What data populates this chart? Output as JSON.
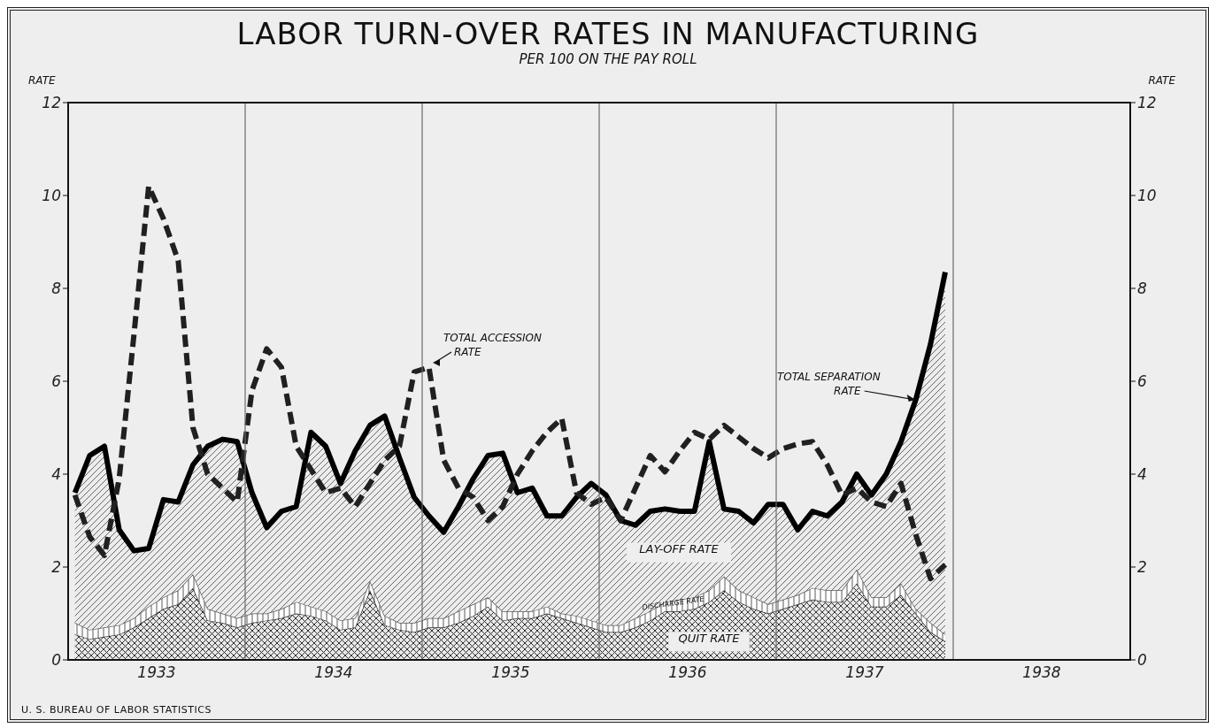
{
  "chart_data": {
    "type": "area",
    "title": "LABOR TURN-OVER RATES IN MANUFACTURING",
    "subtitle": "PER 100 ON THE PAY ROLL",
    "ylabel": "RATE",
    "y2label": "RATE",
    "x": [
      "1933-01-15",
      "1933-02-15",
      "1933-03-15",
      "1933-04-15",
      "1933-05-15",
      "1933-06-15",
      "1933-07-15",
      "1933-08-15",
      "1933-09-15",
      "1933-10-15",
      "1933-11-15",
      "1933-12-15",
      "1934-01-15",
      "1934-02-15",
      "1934-03-15",
      "1934-04-15",
      "1934-05-15",
      "1934-06-15",
      "1934-07-15",
      "1934-08-15",
      "1934-09-15",
      "1934-10-15",
      "1934-11-15",
      "1934-12-15",
      "1935-01-15",
      "1935-02-15",
      "1935-03-15",
      "1935-04-15",
      "1935-05-15",
      "1935-06-15",
      "1935-07-15",
      "1935-08-15",
      "1935-09-15",
      "1935-10-15",
      "1935-11-15",
      "1935-12-15",
      "1936-01-15",
      "1936-02-15",
      "1936-03-15",
      "1936-04-15",
      "1936-05-15",
      "1936-06-15",
      "1936-07-15",
      "1936-08-15",
      "1936-09-15",
      "1936-10-15",
      "1936-11-15",
      "1936-12-15",
      "1937-01-15",
      "1937-02-15",
      "1937-03-15",
      "1937-04-15",
      "1937-05-15",
      "1937-06-15",
      "1937-07-15",
      "1937-08-15",
      "1937-09-15",
      "1937-10-15",
      "1937-11-15",
      "1937-12-15"
    ],
    "stacked": true,
    "series": [
      {
        "name": "QUIT RATE",
        "color": "#303030",
        "values": [
          0.55,
          0.45,
          0.5,
          0.55,
          0.7,
          0.9,
          1.1,
          1.2,
          1.55,
          0.85,
          0.8,
          0.7,
          0.8,
          0.85,
          0.9,
          1.0,
          0.95,
          0.85,
          0.65,
          0.7,
          1.5,
          0.75,
          0.65,
          0.6,
          0.7,
          0.7,
          0.8,
          0.95,
          1.15,
          0.85,
          0.9,
          0.9,
          1.0,
          0.9,
          0.8,
          0.7,
          0.6,
          0.6,
          0.7,
          0.85,
          1.05,
          1.05,
          1.1,
          1.25,
          1.5,
          1.25,
          1.1,
          1.0,
          1.1,
          1.2,
          1.3,
          1.25,
          1.25,
          1.65,
          1.15,
          1.15,
          1.4,
          1.0,
          0.6,
          0.4
        ]
      },
      {
        "name": "DISCHARGE RATE",
        "color": "#5a5a5a",
        "values": [
          0.25,
          0.2,
          0.2,
          0.2,
          0.2,
          0.25,
          0.25,
          0.3,
          0.3,
          0.25,
          0.2,
          0.2,
          0.2,
          0.15,
          0.2,
          0.25,
          0.2,
          0.2,
          0.2,
          0.2,
          0.2,
          0.2,
          0.15,
          0.2,
          0.2,
          0.2,
          0.25,
          0.25,
          0.2,
          0.2,
          0.15,
          0.15,
          0.15,
          0.1,
          0.15,
          0.15,
          0.15,
          0.15,
          0.2,
          0.2,
          0.2,
          0.25,
          0.25,
          0.25,
          0.3,
          0.25,
          0.25,
          0.2,
          0.2,
          0.2,
          0.25,
          0.25,
          0.25,
          0.3,
          0.2,
          0.2,
          0.25,
          0.1,
          0.2,
          0.15
        ]
      },
      {
        "name": "LAY-OFF RATE",
        "color": "#484848",
        "values": [
          2.8,
          3.75,
          3.9,
          2.05,
          1.45,
          1.25,
          2.1,
          1.9,
          2.35,
          3.5,
          3.75,
          3.8,
          2.6,
          1.85,
          2.1,
          2.05,
          3.75,
          3.55,
          2.95,
          3.6,
          3.35,
          4.3,
          3.55,
          2.7,
          2.2,
          1.85,
          2.25,
          2.7,
          3.05,
          3.4,
          2.55,
          2.65,
          1.95,
          2.1,
          2.55,
          2.95,
          2.8,
          2.25,
          2.0,
          2.15,
          2.0,
          1.9,
          1.85,
          3.2,
          1.45,
          1.7,
          1.6,
          2.15,
          2.05,
          1.4,
          1.65,
          1.6,
          1.9,
          2.05,
          2.2,
          2.65,
          3.05,
          4.5,
          6.0,
          7.8
        ]
      },
      {
        "name": "TOTAL ACCESSION RATE",
        "type": "line",
        "line_style": "dashed",
        "color": "#202020",
        "values": [
          3.55,
          2.65,
          2.25,
          3.9,
          7.0,
          10.2,
          9.5,
          8.6,
          5.0,
          4.0,
          3.7,
          3.4,
          5.8,
          6.7,
          6.3,
          4.6,
          4.1,
          3.6,
          3.7,
          3.3,
          3.8,
          4.3,
          4.6,
          6.2,
          6.3,
          4.3,
          3.7,
          3.5,
          3.0,
          3.3,
          4.0,
          4.5,
          4.9,
          5.2,
          3.6,
          3.35,
          3.5,
          3.0,
          3.7,
          4.4,
          4.05,
          4.5,
          4.9,
          4.75,
          5.05,
          4.8,
          4.55,
          4.35,
          4.55,
          4.65,
          4.7,
          4.2,
          3.55,
          3.7,
          3.4,
          3.3,
          3.8,
          2.7,
          1.75,
          2.05
        ]
      }
    ],
    "xlim": [
      "1933-01-01",
      "1939-01-01"
    ],
    "xticks": [
      {
        "value": "1933-07-01",
        "label": "1933"
      },
      {
        "value": "1934-07-01",
        "label": "1934"
      },
      {
        "value": "1935-07-01",
        "label": "1935"
      },
      {
        "value": "1936-07-01",
        "label": "1936"
      },
      {
        "value": "1937-07-01",
        "label": "1937"
      },
      {
        "value": "1938-07-01",
        "label": "1938"
      }
    ],
    "ylim": [
      0,
      12
    ],
    "yticks": [
      0,
      2,
      4,
      6,
      8,
      10,
      12
    ],
    "y2lim": [
      0,
      12
    ],
    "y2ticks": [
      0,
      2,
      4,
      6,
      8,
      10,
      12
    ],
    "ref_lines": [
      {
        "axis": "x",
        "value": "1934-01-01",
        "color": "#6b6b6b"
      },
      {
        "axis": "x",
        "value": "1935-01-01",
        "color": "#6b6b6b"
      },
      {
        "axis": "x",
        "value": "1936-01-01",
        "color": "#6b6b6b"
      },
      {
        "axis": "x",
        "value": "1937-01-01",
        "color": "#6b6b6b"
      },
      {
        "axis": "x",
        "value": "1938-01-01",
        "color": "#6b6b6b"
      }
    ],
    "annotations": [
      {
        "text": "TOTAL SEPARATION RATE",
        "x": "1937-10-15",
        "y": 5.6
      },
      "U. S. BUREAU OF LABOR STATISTICS"
    ]
  }
}
